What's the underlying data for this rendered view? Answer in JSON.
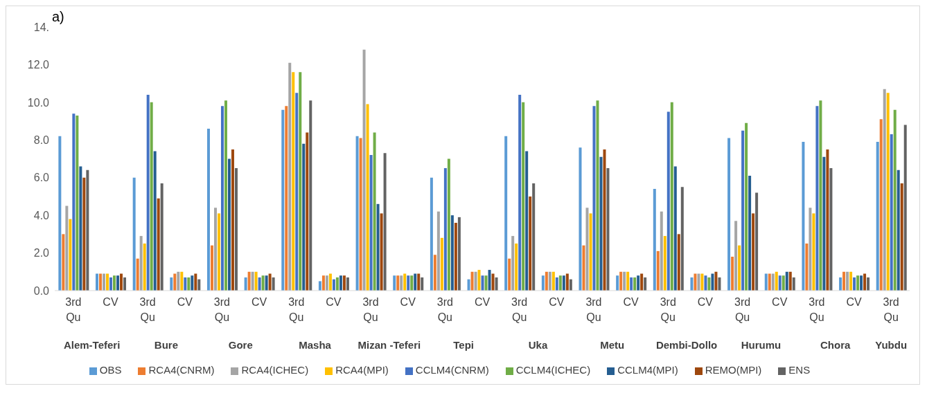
{
  "chart_data": {
    "type": "bar",
    "title": "a)",
    "categories": [
      "3rd Qu",
      "CV",
      "3rd Qu",
      "CV",
      "3rd Qu",
      "CV",
      "3rd Qu",
      "CV",
      "3rd Qu",
      "CV",
      "3rd Qu",
      "CV",
      "3rd Qu",
      "CV",
      "3rd Qu",
      "CV",
      "3rd Qu",
      "CV",
      "3rd Qu",
      "CV",
      "3rd Qu",
      "CV",
      "3rd Qu"
    ],
    "annotations": [
      "Alem-Teferi",
      "Bure",
      "Gore",
      "Masha",
      "Mizan -Teferi",
      "Tepi",
      "Uka",
      "Metu",
      "Dembi-Dollo",
      "Hurumu",
      "Chora",
      "Yubdu"
    ],
    "series": [
      {
        "name": "OBS",
        "color": "#5b9bd5",
        "values": [
          8.2,
          0.9,
          6.0,
          0.7,
          8.6,
          0.7,
          9.6,
          0.5,
          8.2,
          0.8,
          6.0,
          0.6,
          8.2,
          0.8,
          7.6,
          0.8,
          5.4,
          0.7,
          8.1,
          0.9,
          7.9,
          0.7,
          7.9
        ]
      },
      {
        "name": "RCA4(CNRM)",
        "color": "#ed7d31",
        "values": [
          3.0,
          0.9,
          1.7,
          0.9,
          2.4,
          1.0,
          9.8,
          0.8,
          8.1,
          0.8,
          1.9,
          1.0,
          1.7,
          1.0,
          2.4,
          1.0,
          2.1,
          0.9,
          1.8,
          0.9,
          2.5,
          1.0,
          9.1
        ]
      },
      {
        "name": "RCA4(ICHEC)",
        "color": "#a5a5a5",
        "values": [
          4.5,
          0.9,
          2.9,
          1.0,
          4.4,
          1.0,
          12.1,
          0.8,
          12.8,
          0.8,
          4.2,
          1.0,
          2.9,
          1.0,
          4.4,
          1.0,
          4.2,
          0.9,
          3.7,
          0.9,
          4.4,
          1.0,
          10.7
        ]
      },
      {
        "name": "RCA4(MPI)",
        "color": "#ffc000",
        "values": [
          3.8,
          0.9,
          2.5,
          1.0,
          4.1,
          1.0,
          11.6,
          0.9,
          9.9,
          0.9,
          2.8,
          1.1,
          2.5,
          1.0,
          4.1,
          1.0,
          2.9,
          0.9,
          2.4,
          1.0,
          4.1,
          1.0,
          10.5
        ]
      },
      {
        "name": "CCLM4(CNRM)",
        "color": "#4472c4",
        "values": [
          9.4,
          0.7,
          10.4,
          0.7,
          9.8,
          0.7,
          10.5,
          0.6,
          7.2,
          0.8,
          6.5,
          0.8,
          10.4,
          0.7,
          9.8,
          0.7,
          9.5,
          0.8,
          8.5,
          0.8,
          9.8,
          0.7,
          8.3
        ]
      },
      {
        "name": "CCLM4(ICHEC)",
        "color": "#70ad47",
        "values": [
          9.3,
          0.8,
          10.0,
          0.7,
          10.1,
          0.8,
          11.6,
          0.7,
          8.4,
          0.8,
          7.0,
          0.8,
          10.0,
          0.8,
          10.1,
          0.7,
          10.0,
          0.7,
          8.9,
          0.8,
          10.1,
          0.8,
          9.6
        ]
      },
      {
        "name": "CCLM4(MPI)",
        "color": "#255e91",
        "values": [
          6.6,
          0.8,
          7.4,
          0.8,
          7.0,
          0.8,
          7.8,
          0.8,
          4.6,
          0.9,
          4.0,
          1.1,
          7.4,
          0.8,
          7.1,
          0.8,
          6.6,
          0.9,
          6.1,
          1.0,
          7.1,
          0.8,
          6.4
        ]
      },
      {
        "name": "REMO(MPI)",
        "color": "#9e480e",
        "values": [
          6.0,
          0.9,
          4.9,
          0.9,
          7.5,
          0.9,
          8.4,
          0.8,
          4.1,
          0.9,
          3.6,
          0.9,
          5.0,
          0.9,
          7.5,
          0.9,
          3.0,
          1.0,
          4.1,
          1.0,
          7.5,
          0.9,
          5.7
        ]
      },
      {
        "name": "ENS",
        "color": "#636363",
        "values": [
          6.4,
          0.7,
          5.7,
          0.6,
          6.5,
          0.7,
          10.1,
          0.7,
          7.3,
          0.7,
          3.9,
          0.7,
          5.7,
          0.6,
          6.5,
          0.7,
          5.5,
          0.7,
          5.2,
          0.7,
          6.5,
          0.7,
          8.8
        ]
      }
    ],
    "ylim": [
      0,
      14
    ],
    "yticks": [
      {
        "value": 0,
        "label": "0.0"
      },
      {
        "value": 2,
        "label": "2.0"
      },
      {
        "value": 4,
        "label": "4.0"
      },
      {
        "value": 6,
        "label": "6.0"
      },
      {
        "value": 8,
        "label": "8.0"
      },
      {
        "value": 10,
        "label": "10.0"
      },
      {
        "value": 12,
        "label": "12.0"
      },
      {
        "value": 14,
        "label": "14."
      }
    ],
    "legend": "bottom"
  }
}
